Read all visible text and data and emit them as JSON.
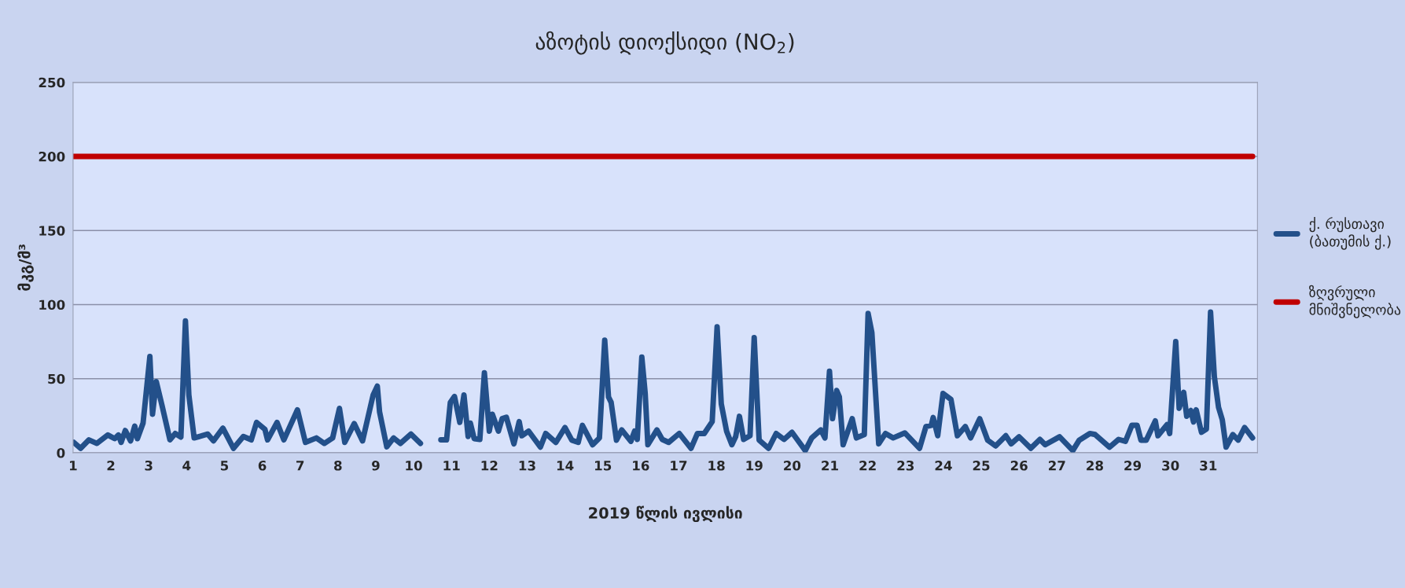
{
  "chart_data": {
    "type": "line",
    "title": "აზოტის დიოქსიდი (NO$_{2}$)",
    "xlabel": "2019 წლის ივლისი",
    "ylabel": "მკგ/მ³",
    "xlim": [
      1,
      32.3
    ],
    "xticks": [
      1,
      2,
      3,
      4,
      5,
      6,
      7,
      8,
      9,
      10,
      11,
      12,
      13,
      14,
      15,
      16,
      17,
      18,
      19,
      20,
      21,
      22,
      23,
      24,
      25,
      26,
      27,
      28,
      29,
      30,
      31
    ],
    "ylim": [
      0,
      250
    ],
    "yticks": [
      0,
      50,
      100,
      150,
      200,
      250
    ],
    "grid": "y",
    "legend": "right",
    "line_style": "solid",
    "marker": "none",
    "series": [
      {
        "name": "ქ. რუსთავი (ბათუმის ქ.)",
        "color": "#23508a",
        "x": [
          1.02,
          1.2,
          1.42,
          1.63,
          1.92,
          2.1,
          2.2,
          2.27,
          2.38,
          2.52,
          2.63,
          2.7,
          2.85,
          3.03,
          3.1,
          3.2,
          3.35,
          3.56,
          3.7,
          3.85,
          3.97,
          4.06,
          4.2,
          4.56,
          4.71,
          4.96,
          5.24,
          5.5,
          5.71,
          5.85,
          6.07,
          6.14,
          6.39,
          6.57,
          6.93,
          7.14,
          7.43,
          7.64,
          7.86,
          8.04,
          8.18,
          8.43,
          8.65,
          8.93,
          9.04,
          9.1,
          9.29,
          9.47,
          9.65,
          9.93,
          10.18,
          10.45,
          10.72,
          10.87,
          10.97,
          11.08,
          11.22,
          11.33,
          11.44,
          11.5,
          11.6,
          11.75,
          11.87,
          12.0,
          12.08,
          12.24,
          12.34,
          12.45,
          12.65,
          12.79,
          12.86,
          13.04,
          13.35,
          13.49,
          13.76,
          14.0,
          14.18,
          14.35,
          14.46,
          14.73,
          14.91,
          15.05,
          15.15,
          15.22,
          15.36,
          15.5,
          15.74,
          15.84,
          15.91,
          16.03,
          16.12,
          16.19,
          16.43,
          16.57,
          16.74,
          17.02,
          17.33,
          17.5,
          17.68,
          17.89,
          18.02,
          18.13,
          18.27,
          18.41,
          18.51,
          18.61,
          18.72,
          18.89,
          19.0,
          19.13,
          19.38,
          19.58,
          19.79,
          20.0,
          20.35,
          20.52,
          20.76,
          20.87,
          20.99,
          21.07,
          21.18,
          21.25,
          21.35,
          21.59,
          21.7,
          21.91,
          22.01,
          22.11,
          22.29,
          22.47,
          22.67,
          22.98,
          23.37,
          23.54,
          23.68,
          23.73,
          23.85,
          23.99,
          24.2,
          24.37,
          24.58,
          24.72,
          24.96,
          25.17,
          25.38,
          25.65,
          25.79,
          26.0,
          26.31,
          26.55,
          26.69,
          27.07,
          27.42,
          27.59,
          27.87,
          28.01,
          28.39,
          28.63,
          28.81,
          28.98,
          29.12,
          29.22,
          29.36,
          29.6,
          29.67,
          29.91,
          29.98,
          30.14,
          30.23,
          30.35,
          30.43,
          30.54,
          30.61,
          30.68,
          30.82,
          30.95,
          31.06,
          31.16,
          31.27,
          31.37,
          31.47,
          31.65,
          31.79,
          31.96,
          32.17
        ],
        "values": [
          7,
          3,
          8.7,
          6.3,
          12,
          9.5,
          12,
          7,
          15,
          8,
          18,
          9.5,
          20,
          65,
          26,
          48,
          32,
          8.7,
          13,
          10.6,
          89,
          39,
          10,
          12.6,
          8,
          16.6,
          3,
          11,
          8.7,
          20.5,
          15.8,
          8.7,
          20.5,
          8.7,
          29,
          7,
          10,
          6.3,
          10,
          30,
          7,
          19.7,
          8,
          39,
          45,
          27.6,
          4,
          10,
          6.3,
          12.6,
          6.3,
          null,
          8.7,
          8.7,
          34,
          38,
          20.5,
          39,
          11,
          20,
          9.5,
          9,
          54,
          14.6,
          26,
          14.6,
          23,
          24,
          6,
          21,
          11.5,
          14.6,
          3.8,
          13,
          7,
          17,
          8.5,
          7,
          18.5,
          5.4,
          10,
          76,
          37.7,
          34,
          8.5,
          15.4,
          7.7,
          14.6,
          9,
          64.6,
          40,
          5.4,
          15.4,
          9,
          7,
          13,
          3,
          13,
          13,
          21,
          85,
          33,
          14.6,
          5.4,
          10.8,
          24.6,
          9,
          11.5,
          77.7,
          8.5,
          3,
          13,
          9,
          13.8,
          1.5,
          10,
          15.4,
          10,
          55,
          23,
          42,
          37.7,
          5.4,
          23,
          10,
          12.3,
          94,
          81,
          6,
          13,
          10,
          13.4,
          3,
          17.7,
          18.5,
          23.8,
          11.5,
          40,
          36,
          11.5,
          17.7,
          10,
          23,
          8.5,
          4.6,
          11.5,
          6,
          10.8,
          3,
          9,
          5.4,
          10.8,
          1.5,
          8.5,
          13,
          12.3,
          3.8,
          9,
          7.7,
          18.5,
          18.5,
          8.5,
          8.5,
          21.5,
          11.5,
          19,
          13,
          75,
          30,
          40.8,
          24.6,
          28.5,
          20.8,
          29,
          13.8,
          16,
          95,
          51.5,
          30.8,
          22.3,
          3.8,
          12.3,
          8.5,
          17,
          10
        ]
      },
      {
        "name": "ზღვრული მნიშვნელობა",
        "color": "#c00000",
        "x": [
          1,
          32.17
        ],
        "values": [
          200,
          200
        ]
      }
    ]
  }
}
